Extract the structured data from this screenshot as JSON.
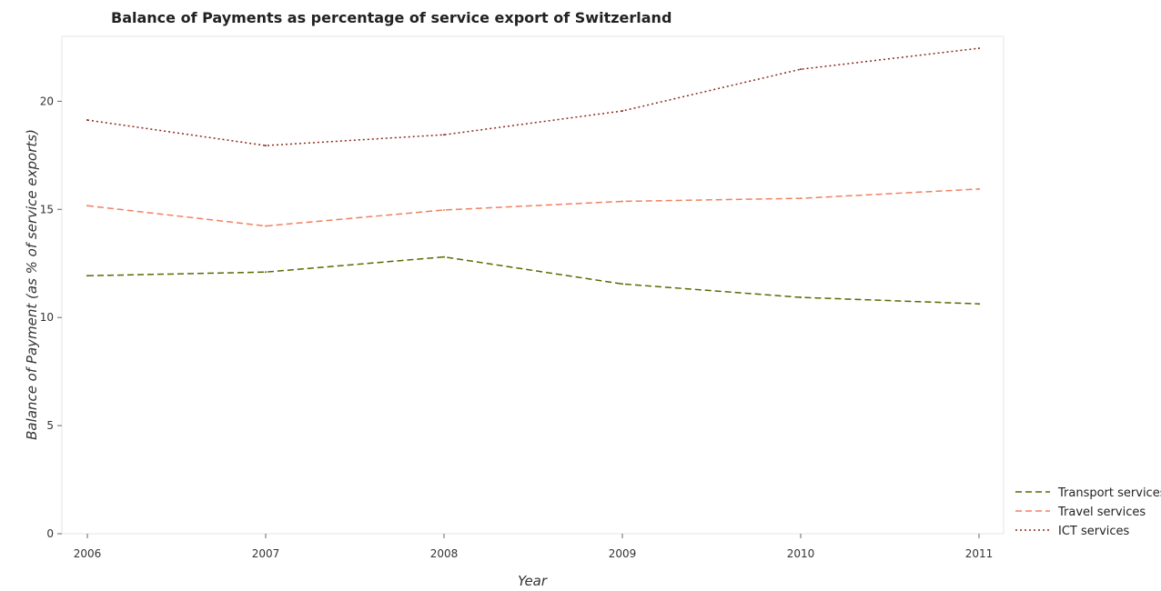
{
  "chart_data": {
    "type": "line",
    "title": "Balance of Payments as percentage of service export of Switzerland",
    "xlabel": "Year",
    "ylabel": "Balance of Payment (as % of service exports)",
    "x": [
      "2006",
      "2007",
      "2008",
      "2009",
      "2010",
      "2011"
    ],
    "ylim": [
      0,
      23
    ],
    "yticks": [
      "0",
      "5",
      "10",
      "15",
      "20"
    ],
    "grid": false,
    "legend_position": "bottom-right",
    "series": [
      {
        "name": "Transport services",
        "color": "#556b00",
        "dash": "dashed",
        "values": [
          11.93,
          12.1,
          12.8,
          11.55,
          10.93,
          10.63
        ]
      },
      {
        "name": "Travel services",
        "color": "#f08060",
        "dash": "dashed",
        "values": [
          15.17,
          14.23,
          14.97,
          15.37,
          15.51,
          15.94
        ]
      },
      {
        "name": "ICT services",
        "color": "#8b2a1a",
        "dash": "dotted",
        "values": [
          19.13,
          17.95,
          18.45,
          19.55,
          21.48,
          22.45
        ]
      }
    ]
  }
}
